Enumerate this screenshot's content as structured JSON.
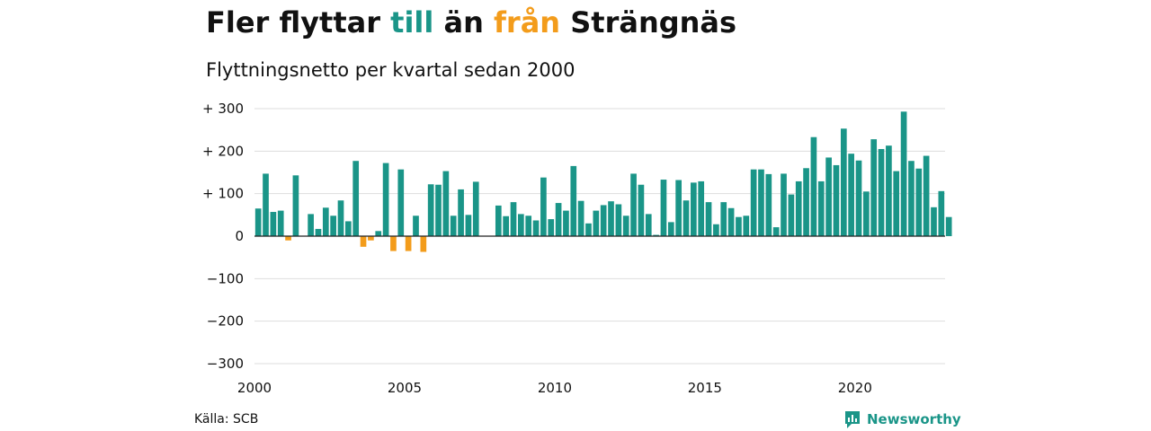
{
  "title": {
    "part1": "Fler flyttar",
    "part2": "till",
    "part3": "än",
    "part4": "från",
    "part5": "Strängnäs"
  },
  "subtitle": "Flyttningsnetto per kvartal sedan 2000",
  "source": "Källa: SCB",
  "logo": {
    "text": "Newsworthy",
    "icon": "bar-chart-icon"
  },
  "colors": {
    "positive": "#1a9588",
    "negative": "#f39c1b",
    "grid": "#dddddd",
    "zero_line": "#222222"
  },
  "chart_data": {
    "type": "bar",
    "xlim": [
      2000,
      2023
    ],
    "ylim": [
      -300,
      300
    ],
    "y_ticks": [
      300,
      200,
      100,
      0,
      -100,
      -200,
      -300
    ],
    "y_tick_labels": [
      "+ 300",
      "+ 200",
      "+ 100",
      "0",
      "−100",
      "−200",
      "−300"
    ],
    "x_tick_labels": [
      "2000",
      "2005",
      "2010",
      "2015",
      "2020"
    ],
    "grid": true,
    "values": [
      65,
      147,
      57,
      60,
      -10,
      143,
      0,
      52,
      17,
      67,
      48,
      84,
      35,
      177,
      -25,
      -10,
      12,
      172,
      -35,
      157,
      -35,
      48,
      -37,
      122,
      121,
      153,
      48,
      110,
      50,
      128,
      0,
      0,
      72,
      47,
      80,
      52,
      48,
      37,
      138,
      40,
      78,
      60,
      165,
      83,
      30,
      60,
      73,
      82,
      75,
      48,
      147,
      121,
      52,
      3,
      133,
      33,
      132,
      84,
      126,
      129,
      80,
      28,
      80,
      66,
      45,
      48,
      157,
      157,
      146,
      21,
      147,
      98,
      129,
      160,
      233,
      129,
      185,
      167,
      253,
      194,
      178,
      105,
      228,
      205,
      213,
      153,
      293,
      177,
      159,
      189,
      68,
      106,
      45
    ]
  }
}
